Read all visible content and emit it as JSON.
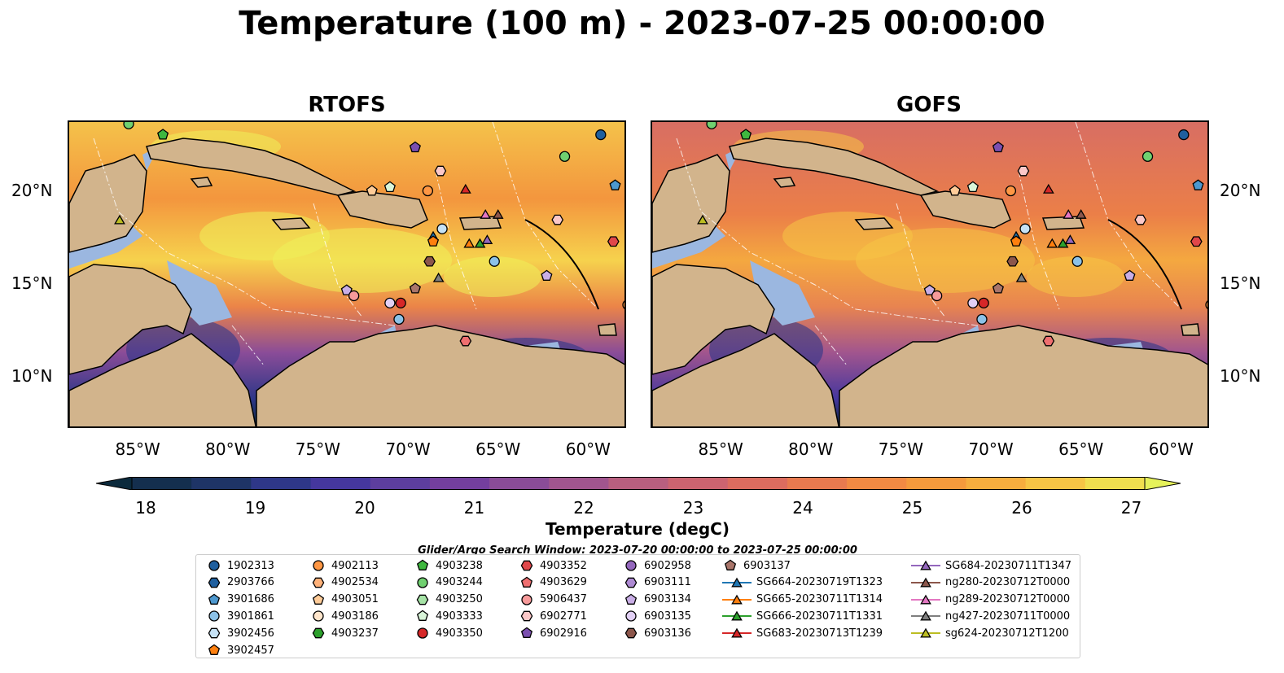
{
  "title": "Temperature (100 m) - 2023-07-25 00:00:00",
  "panels": [
    {
      "id": "rtofs",
      "title": "RTOFS"
    },
    {
      "id": "gofs",
      "title": "GOFS"
    }
  ],
  "axes": {
    "lon_ticks": [
      "85°W",
      "80°W",
      "75°W",
      "70°W",
      "65°W",
      "60°W"
    ],
    "lat_ticks": [
      "20°N",
      "15°N",
      "10°N"
    ],
    "lon_range": [
      -89,
      -58
    ],
    "lat_range": [
      7,
      24
    ]
  },
  "colorbar": {
    "label": "Temperature (degC)",
    "ticks": [
      "18",
      "19",
      "20",
      "21",
      "22",
      "23",
      "24",
      "25",
      "26",
      "27"
    ],
    "range": [
      18,
      27
    ],
    "extend": "both",
    "colors": [
      "#0b2a3c",
      "#142f4e",
      "#1e3466",
      "#2e3788",
      "#45379e",
      "#5d3e9f",
      "#743f9e",
      "#8a4c98",
      "#a1558e",
      "#b85f7f",
      "#cc6470",
      "#dc6c5f",
      "#e87a4f",
      "#f28a43",
      "#f59a3c",
      "#f6ae3e",
      "#f6c545",
      "#f0df4f",
      "#e6f25a"
    ]
  },
  "window_note": "Glider/Argo Search Window: 2023-07-20 00:00:00 to 2023-07-25 00:00:00",
  "legend": {
    "columns": [
      [
        {
          "label": "1902313",
          "marker": "circle",
          "color": "#1f5f9e"
        },
        {
          "label": "2903766",
          "marker": "hexagon",
          "color": "#1f5f9e"
        },
        {
          "label": "3901686",
          "marker": "pentagon",
          "color": "#4d98cf"
        },
        {
          "label": "3901861",
          "marker": "circle",
          "color": "#8cc2e8"
        },
        {
          "label": "3902456",
          "marker": "hexagon",
          "color": "#c6e2f5"
        },
        {
          "label": "3902457",
          "marker": "pentagon",
          "color": "#ff7f0e"
        }
      ],
      [
        {
          "label": "4902113",
          "marker": "circle",
          "color": "#ff9744"
        },
        {
          "label": "4902534",
          "marker": "hexagon",
          "color": "#ffb27a"
        },
        {
          "label": "4903051",
          "marker": "pentagon",
          "color": "#ffcc99"
        },
        {
          "label": "4903186",
          "marker": "circle",
          "color": "#ffe6cc"
        },
        {
          "label": "4903237",
          "marker": "hexagon",
          "color": "#2ca02c"
        }
      ],
      [
        {
          "label": "4903238",
          "marker": "pentagon",
          "color": "#3fb83f"
        },
        {
          "label": "4903244",
          "marker": "circle",
          "color": "#70d070"
        },
        {
          "label": "4903250",
          "marker": "hexagon",
          "color": "#a6e3a6"
        },
        {
          "label": "4903333",
          "marker": "pentagon",
          "color": "#d9f5d9"
        },
        {
          "label": "4903350",
          "marker": "circle",
          "color": "#d62728"
        }
      ],
      [
        {
          "label": "4903352",
          "marker": "hexagon",
          "color": "#e0474a"
        },
        {
          "label": "4903629",
          "marker": "pentagon",
          "color": "#ef6f70"
        },
        {
          "label": "5906437",
          "marker": "circle",
          "color": "#f79a9a"
        },
        {
          "label": "6902771",
          "marker": "hexagon",
          "color": "#fcc8c8"
        },
        {
          "label": "6902916",
          "marker": "pentagon",
          "color": "#7b4fb0"
        }
      ],
      [
        {
          "label": "6902958",
          "marker": "circle",
          "color": "#9467bd"
        },
        {
          "label": "6903111",
          "marker": "hexagon",
          "color": "#ae8ad3"
        },
        {
          "label": "6903134",
          "marker": "pentagon",
          "color": "#c9aee6"
        },
        {
          "label": "6903135",
          "marker": "circle",
          "color": "#e2d0f5"
        },
        {
          "label": "6903136",
          "marker": "hexagon",
          "color": "#8c564b"
        }
      ],
      [
        {
          "label": "6903137",
          "marker": "pentagon",
          "color": "#a9756a"
        },
        {
          "label": "SG664-20230719T1323",
          "marker": "triangle",
          "color": "#1f77b4"
        },
        {
          "label": "SG665-20230711T1314",
          "marker": "triangle",
          "color": "#ff7f0e"
        },
        {
          "label": "SG666-20230711T1331",
          "marker": "triangle",
          "color": "#2ca02c"
        },
        {
          "label": "SG683-20230713T1239",
          "marker": "triangle",
          "color": "#d62728"
        }
      ],
      [
        {
          "label": "SG684-20230711T1347",
          "marker": "triangle",
          "color": "#9467bd"
        },
        {
          "label": "ng280-20230712T0000",
          "marker": "triangle",
          "color": "#8c564b"
        },
        {
          "label": "ng289-20230712T0000",
          "marker": "triangle",
          "color": "#e377c2"
        },
        {
          "label": "ng427-20230711T0000",
          "marker": "triangle",
          "color": "#7f7f7f"
        },
        {
          "label": "sg624-20230712T1200",
          "marker": "triangle",
          "color": "#bcbd22"
        }
      ]
    ]
  },
  "markers_on_map": [
    {
      "lon": -59.5,
      "lat": 23.3,
      "marker": "circle",
      "color": "#1f5f9e"
    },
    {
      "lon": -58.7,
      "lat": 20.5,
      "marker": "pentagon",
      "color": "#4d98cf"
    },
    {
      "lon": -61.5,
      "lat": 22.1,
      "marker": "circle",
      "color": "#70d070"
    },
    {
      "lon": -83.8,
      "lat": 23.3,
      "marker": "pentagon",
      "color": "#3fb83f"
    },
    {
      "lon": -85.7,
      "lat": 23.9,
      "marker": "circle",
      "color": "#70d070"
    },
    {
      "lon": -69.8,
      "lat": 22.6,
      "marker": "pentagon",
      "color": "#7b4fb0"
    },
    {
      "lon": -68.4,
      "lat": 21.3,
      "marker": "hexagon",
      "color": "#fcc8c8"
    },
    {
      "lon": -72.2,
      "lat": 20.2,
      "marker": "pentagon",
      "color": "#ffcc99"
    },
    {
      "lon": -71.2,
      "lat": 20.4,
      "marker": "pentagon",
      "color": "#d9f5d9"
    },
    {
      "lon": -69.1,
      "lat": 20.2,
      "marker": "circle",
      "color": "#ff9744"
    },
    {
      "lon": -67.0,
      "lat": 20.3,
      "marker": "triangle",
      "color": "#d62728"
    },
    {
      "lon": -86.2,
      "lat": 18.6,
      "marker": "triangle",
      "color": "#bcbd22"
    },
    {
      "lon": -68.3,
      "lat": 18.1,
      "marker": "circle",
      "color": "#c6e2f5"
    },
    {
      "lon": -68.8,
      "lat": 17.7,
      "marker": "triangle",
      "color": "#1f77b4"
    },
    {
      "lon": -68.8,
      "lat": 17.4,
      "marker": "pentagon",
      "color": "#ff7f0e"
    },
    {
      "lon": -65.9,
      "lat": 18.9,
      "marker": "triangle",
      "color": "#e377c2"
    },
    {
      "lon": -65.2,
      "lat": 18.9,
      "marker": "triangle",
      "color": "#8c564b"
    },
    {
      "lon": -66.8,
      "lat": 17.3,
      "marker": "triangle",
      "color": "#ff7f0e"
    },
    {
      "lon": -66.2,
      "lat": 17.3,
      "marker": "triangle",
      "color": "#2ca02c"
    },
    {
      "lon": -65.8,
      "lat": 17.5,
      "marker": "triangle",
      "color": "#9467bd"
    },
    {
      "lon": -61.9,
      "lat": 18.6,
      "marker": "hexagon",
      "color": "#fcc8c8"
    },
    {
      "lon": -58.8,
      "lat": 17.4,
      "marker": "hexagon",
      "color": "#e0474a"
    },
    {
      "lon": -69.0,
      "lat": 16.3,
      "marker": "hexagon",
      "color": "#8c564b"
    },
    {
      "lon": -65.4,
      "lat": 16.3,
      "marker": "circle",
      "color": "#8cc2e8"
    },
    {
      "lon": -68.5,
      "lat": 15.4,
      "marker": "triangle",
      "color": "#7f7f7f"
    },
    {
      "lon": -62.5,
      "lat": 15.5,
      "marker": "pentagon",
      "color": "#c9aee6"
    },
    {
      "lon": -69.8,
      "lat": 14.8,
      "marker": "pentagon",
      "color": "#a9756a"
    },
    {
      "lon": -73.6,
      "lat": 14.7,
      "marker": "pentagon",
      "color": "#c9aee6"
    },
    {
      "lon": -73.2,
      "lat": 14.4,
      "marker": "circle",
      "color": "#f79a9a"
    },
    {
      "lon": -71.2,
      "lat": 14.0,
      "marker": "circle",
      "color": "#e2d0f5"
    },
    {
      "lon": -70.6,
      "lat": 14.0,
      "marker": "circle",
      "color": "#d62728"
    },
    {
      "lon": -70.7,
      "lat": 13.1,
      "marker": "circle",
      "color": "#8cc2e8"
    },
    {
      "lon": -67.0,
      "lat": 11.9,
      "marker": "hexagon",
      "color": "#ef6f70"
    },
    {
      "lon": -58.0,
      "lat": 13.9,
      "marker": "circle",
      "color": "#ff9744"
    }
  ]
}
